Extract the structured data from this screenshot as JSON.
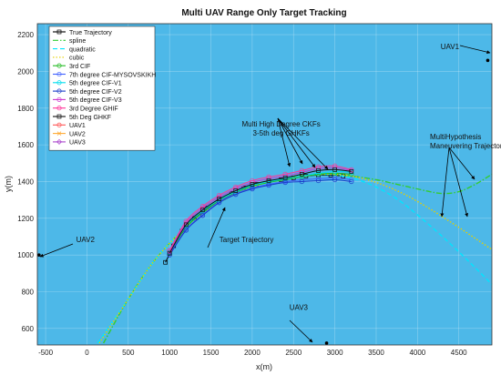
{
  "chart_data": {
    "type": "line",
    "title": "Multi UAV Range Only Target Tracking",
    "xlabel": "x(m)",
    "ylabel": "y(m)",
    "xlim": [
      -600,
      4900
    ],
    "ylim": [
      510,
      2260
    ],
    "xticks": [
      -500,
      0,
      500,
      1000,
      1500,
      2000,
      2500,
      3000,
      3500,
      4000,
      4500
    ],
    "yticks": [
      600,
      800,
      1000,
      1200,
      1400,
      1600,
      1800,
      2000,
      2200
    ],
    "grid": true,
    "legend_position": "top-left",
    "plot_background": "#4db8e8",
    "legend": [
      {
        "label": "True Trajectory",
        "color": "#000000",
        "style": "solid",
        "marker": "square"
      },
      {
        "label": "spline",
        "color": "#33cc33",
        "style": "dashdot",
        "marker": "none"
      },
      {
        "label": "quadratic",
        "color": "#00e5ff",
        "style": "dashed",
        "marker": "none"
      },
      {
        "label": "cubic",
        "color": "#e6d000",
        "style": "dotted",
        "marker": "none"
      },
      {
        "label": "3rd CIF",
        "color": "#22bb22",
        "style": "solid",
        "marker": "circle"
      },
      {
        "label": "7th degree CIF-MYSOVSKIKH",
        "color": "#4060ff",
        "style": "solid",
        "marker": "circle"
      },
      {
        "label": "5th degree CIF-V1",
        "color": "#00ddee",
        "style": "solid",
        "marker": "circle"
      },
      {
        "label": "5th degree CIF-V2",
        "color": "#1a3cc8",
        "style": "solid",
        "marker": "circle"
      },
      {
        "label": "5th degree CIF-V3",
        "color": "#cc33cc",
        "style": "solid",
        "marker": "circle"
      },
      {
        "label": "3rd Degree GHIF",
        "color": "#ff3399",
        "style": "solid",
        "marker": "circle"
      },
      {
        "label": "5th Deg GHKF",
        "color": "#111111",
        "style": "solid",
        "marker": "square"
      },
      {
        "label": "UAV1",
        "color": "#ff5555",
        "style": "solid",
        "marker": "circle"
      },
      {
        "label": "UAV2",
        "color": "#ffaa33",
        "style": "solid",
        "marker": "x"
      },
      {
        "label": "UAV3",
        "color": "#aa44cc",
        "style": "solid",
        "marker": "diamond"
      }
    ],
    "series": [
      {
        "name": "True Trajectory",
        "color": "#000000",
        "x": [
          950,
          1050,
          1150,
          1300,
          1450,
          1600,
          1750,
          1900,
          2050,
          2200,
          2350,
          2500,
          2650,
          2800,
          2950,
          3100
        ],
        "y": [
          960,
          1050,
          1130,
          1200,
          1255,
          1300,
          1335,
          1365,
          1385,
          1400,
          1410,
          1420,
          1430,
          1435,
          1435,
          1430
        ]
      },
      {
        "name": "spline",
        "color": "#33cc33",
        "x": [
          200,
          500,
          800,
          1100,
          1400,
          1700,
          2000,
          2300,
          2600,
          2900,
          3200,
          3500,
          3800,
          4100,
          4300,
          4500,
          4700,
          4900
        ],
        "y": [
          520,
          760,
          960,
          1110,
          1230,
          1310,
          1370,
          1410,
          1430,
          1440,
          1430,
          1410,
          1380,
          1350,
          1335,
          1345,
          1385,
          1440
        ]
      },
      {
        "name": "quadratic",
        "color": "#00e5ff",
        "x": [
          130,
          500,
          800,
          1100,
          1400,
          1700,
          2000,
          2300,
          2600,
          2900,
          3200,
          3500,
          3800,
          4100,
          4400,
          4700,
          4900
        ],
        "y": [
          520,
          760,
          960,
          1110,
          1230,
          1310,
          1370,
          1410,
          1430,
          1440,
          1420,
          1370,
          1290,
          1180,
          1060,
          930,
          840
        ]
      },
      {
        "name": "cubic",
        "color": "#e6d000",
        "x": [
          150,
          500,
          800,
          1100,
          1400,
          1700,
          2000,
          2300,
          2600,
          2900,
          3200,
          3500,
          3800,
          4100,
          4400,
          4700,
          4900
        ],
        "y": [
          520,
          760,
          960,
          1110,
          1230,
          1310,
          1370,
          1410,
          1430,
          1440,
          1430,
          1395,
          1340,
          1265,
          1180,
          1090,
          1030
        ]
      },
      {
        "name": "3rd CIF",
        "color": "#22bb22",
        "x": [
          1000,
          1200,
          1400,
          1600,
          1800,
          2000,
          2200,
          2400,
          2600,
          2800,
          3000,
          3200
        ],
        "y": [
          1010,
          1150,
          1230,
          1295,
          1340,
          1375,
          1395,
          1410,
          1425,
          1440,
          1445,
          1440
        ]
      },
      {
        "name": "7th degree CIF-MYSOVSKIKH",
        "color": "#4060ff",
        "x": [
          1000,
          1200,
          1400,
          1600,
          1800,
          2000,
          2200,
          2400,
          2600,
          2800,
          3000,
          3200
        ],
        "y": [
          1005,
          1140,
          1220,
          1290,
          1335,
          1365,
          1385,
          1400,
          1410,
          1415,
          1420,
          1410
        ]
      },
      {
        "name": "5th degree CIF-V1",
        "color": "#00ddee",
        "x": [
          1000,
          1200,
          1400,
          1600,
          1800,
          2000,
          2200,
          2400,
          2600,
          2800,
          3000,
          3200
        ],
        "y": [
          1015,
          1160,
          1240,
          1300,
          1345,
          1380,
          1400,
          1415,
          1430,
          1445,
          1455,
          1450
        ]
      },
      {
        "name": "5th degree CIF-V2",
        "color": "#1a3cc8",
        "x": [
          1000,
          1200,
          1400,
          1600,
          1800,
          2000,
          2200,
          2400,
          2600,
          2800,
          3000,
          3200
        ],
        "y": [
          1000,
          1135,
          1215,
          1285,
          1330,
          1360,
          1380,
          1395,
          1400,
          1405,
          1410,
          1400
        ]
      },
      {
        "name": "5th degree CIF-V3",
        "color": "#cc33cc",
        "x": [
          1000,
          1200,
          1400,
          1600,
          1800,
          2000,
          2200,
          2400,
          2600,
          2800,
          3000,
          3200
        ],
        "y": [
          1020,
          1175,
          1255,
          1315,
          1360,
          1395,
          1415,
          1430,
          1450,
          1470,
          1475,
          1460
        ]
      },
      {
        "name": "3rd Degree GHIF",
        "color": "#ff3399",
        "x": [
          1000,
          1200,
          1400,
          1600,
          1800,
          2000,
          2200,
          2400,
          2600,
          2800,
          3000,
          3200
        ],
        "y": [
          1025,
          1185,
          1265,
          1325,
          1370,
          1405,
          1425,
          1440,
          1460,
          1480,
          1485,
          1465
        ]
      },
      {
        "name": "5th Deg GHKF",
        "color": "#111111",
        "x": [
          1000,
          1200,
          1400,
          1600,
          1800,
          2000,
          2200,
          2400,
          2600,
          2800,
          3000,
          3200
        ],
        "y": [
          1010,
          1165,
          1245,
          1305,
          1350,
          1385,
          1405,
          1420,
          1440,
          1460,
          1465,
          1455
        ]
      }
    ],
    "points": [
      {
        "name": "UAV1",
        "x": 4850,
        "y": 2060
      },
      {
        "name": "UAV2",
        "x": -580,
        "y": 1000
      },
      {
        "name": "UAV3",
        "x": 2900,
        "y": 520
      }
    ],
    "annotations": [
      {
        "text": "UAV1",
        "x": 4280,
        "y": 2120
      },
      {
        "text": "UAV2",
        "x": -130,
        "y": 1070
      },
      {
        "text": "UAV3",
        "x": 2450,
        "y": 700
      },
      {
        "text": "Multi High Degree CKFs",
        "x": 2350,
        "y": 1700
      },
      {
        "text": "3-5th deg GHKFs",
        "x": 2350,
        "y": 1650
      },
      {
        "text": "Target Trajectory",
        "x": 1930,
        "y": 1070
      },
      {
        "text": "MultiHypothesis",
        "x": 4150,
        "y": 1630
      },
      {
        "text": "Maneuvering Trajectories",
        "x": 4150,
        "y": 1580
      }
    ]
  }
}
